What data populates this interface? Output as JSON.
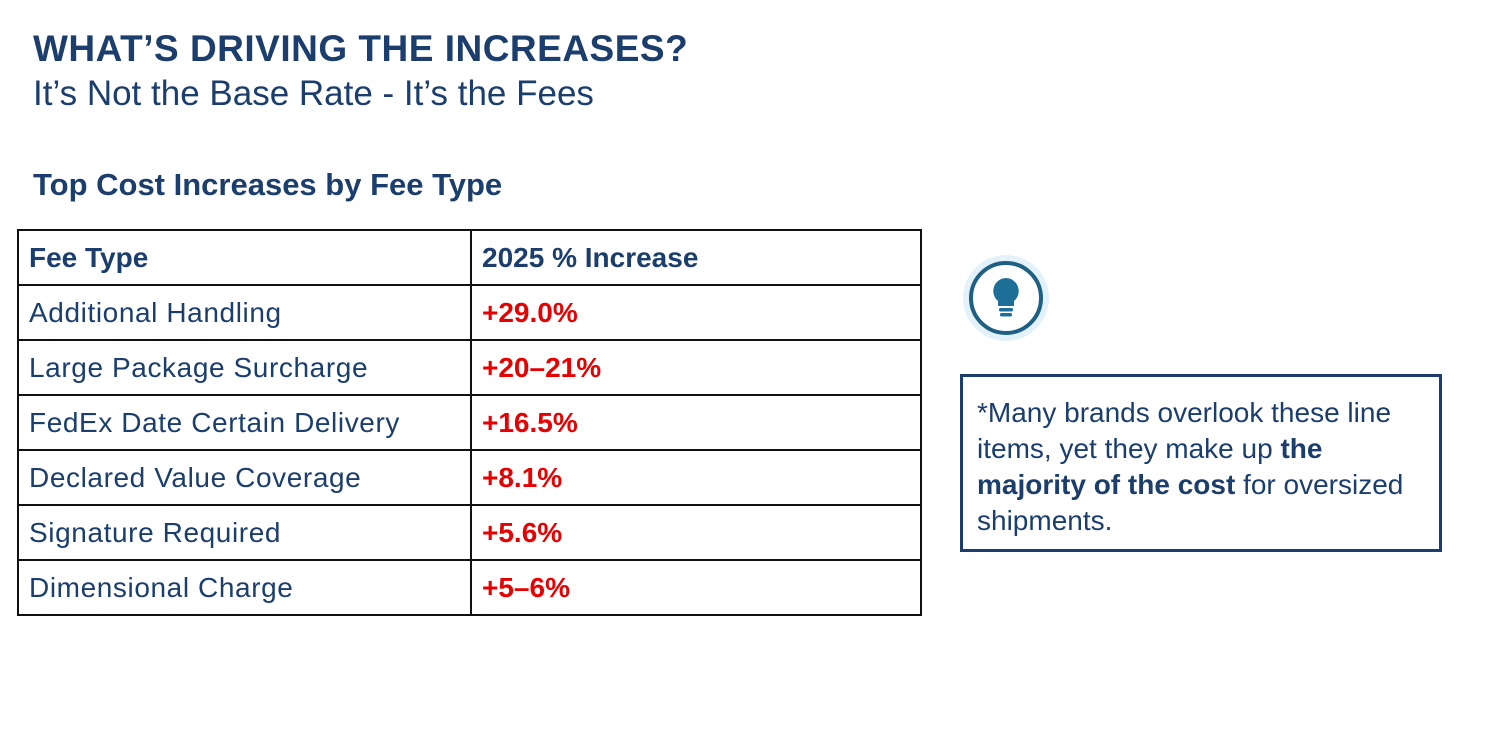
{
  "header": {
    "title": "WHAT’S DRIVING THE INCREASES?",
    "subtitle": "It’s Not the Base Rate - It’s the Fees"
  },
  "table": {
    "title": "Top Cost Increases by Fee Type",
    "columns": [
      "Fee Type",
      "2025 % Increase"
    ],
    "rows": [
      [
        "Additional Handling",
        "+29.0%"
      ],
      [
        "Large Package Surcharge",
        "+20–21%"
      ],
      [
        "FedEx Date Certain Delivery",
        "+16.5%"
      ],
      [
        "Declared Value Coverage",
        "+8.1%"
      ],
      [
        "Signature Required",
        "+5.6%"
      ],
      [
        "Dimensional Charge",
        "+5–6%"
      ]
    ]
  },
  "note": {
    "text_before": "*Many brands overlook these line items, yet they make up ",
    "emphasis": "the majority of the cost",
    "text_after": " for oversized shipments."
  }
}
